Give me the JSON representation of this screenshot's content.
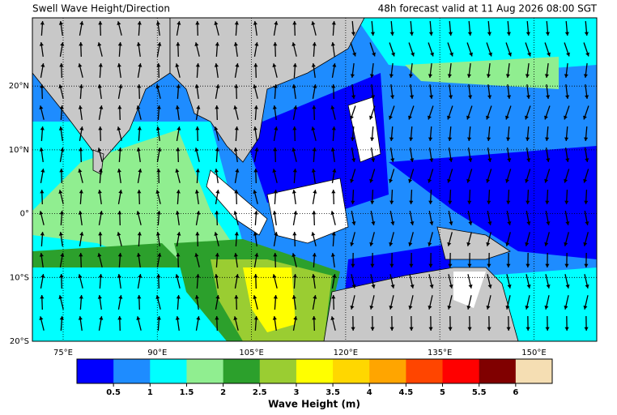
{
  "chart_data": {
    "type": "map",
    "title": "Swell Wave Height/Direction",
    "subtitle": "48h forecast valid at 11 Aug 2026 08:00 SGT",
    "xlim": [
      70.1,
      160
    ],
    "ylim": [
      -20,
      30.7
    ],
    "xticks": [
      {
        "value": 75,
        "label": "75°E"
      },
      {
        "value": 90,
        "label": "90°E"
      },
      {
        "value": 105,
        "label": "105°E"
      },
      {
        "value": 120,
        "label": "120°E"
      },
      {
        "value": 135,
        "label": "135°E"
      },
      {
        "value": 150,
        "label": "150°E"
      }
    ],
    "yticks": [
      {
        "value": 20,
        "label": "20°N"
      },
      {
        "value": 10,
        "label": "10°N"
      },
      {
        "value": 0,
        "label": "0°"
      },
      {
        "value": -10,
        "label": "10°S"
      },
      {
        "value": -20,
        "label": "20°S"
      }
    ],
    "grid": true,
    "colorbar": {
      "label": "Wave Height (m)",
      "lim": [
        0,
        6.5
      ],
      "colors": [
        "#0000ff",
        "#1e8cff",
        "#00ffff",
        "#90ee90",
        "#2ca02c",
        "#9acd32",
        "#ffff00",
        "#ffd700",
        "#ffa500",
        "#ff4500",
        "#ff0000",
        "#800000",
        "#f5deb3"
      ],
      "ticks": [
        0.5,
        1,
        1.5,
        2,
        2.5,
        3,
        3.5,
        4,
        4.5,
        5,
        5.5,
        6
      ]
    }
  }
}
